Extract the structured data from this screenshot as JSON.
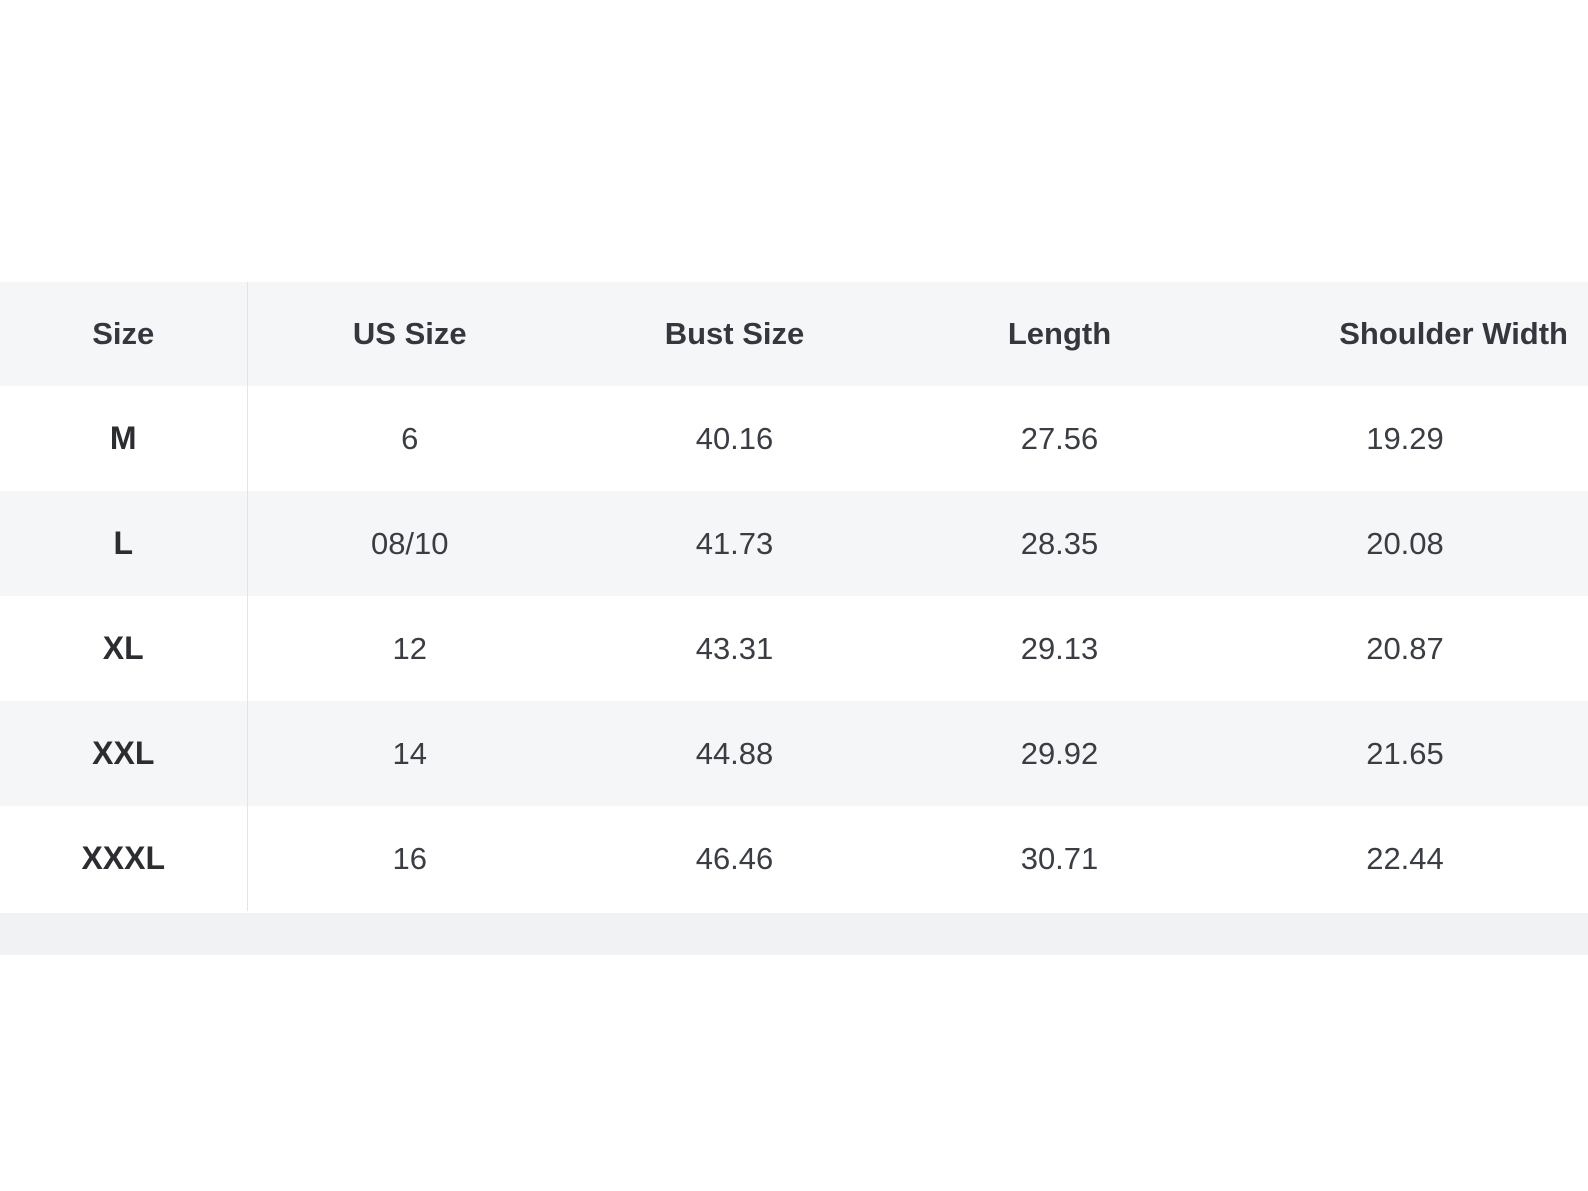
{
  "table": {
    "headers": [
      "Size",
      "US Size",
      "Bust Size",
      "Length",
      "Shoulder Width"
    ],
    "rows": [
      [
        "M",
        "6",
        "40.16",
        "27.56",
        "19.29"
      ],
      [
        "L",
        "08/10",
        "41.73",
        "28.35",
        "20.08"
      ],
      [
        "XL",
        "12",
        "43.31",
        "29.13",
        "20.87"
      ],
      [
        "XXL",
        "14",
        "44.88",
        "29.92",
        "21.65"
      ],
      [
        "XXXL",
        "16",
        "46.46",
        "30.71",
        "22.44"
      ]
    ]
  },
  "colors": {
    "header_bg": "#f5f6f8",
    "row_alt_bg": "#f5f6f8",
    "row_bg": "#ffffff",
    "text": "#2f3136",
    "divider": "#e2e4e8"
  }
}
